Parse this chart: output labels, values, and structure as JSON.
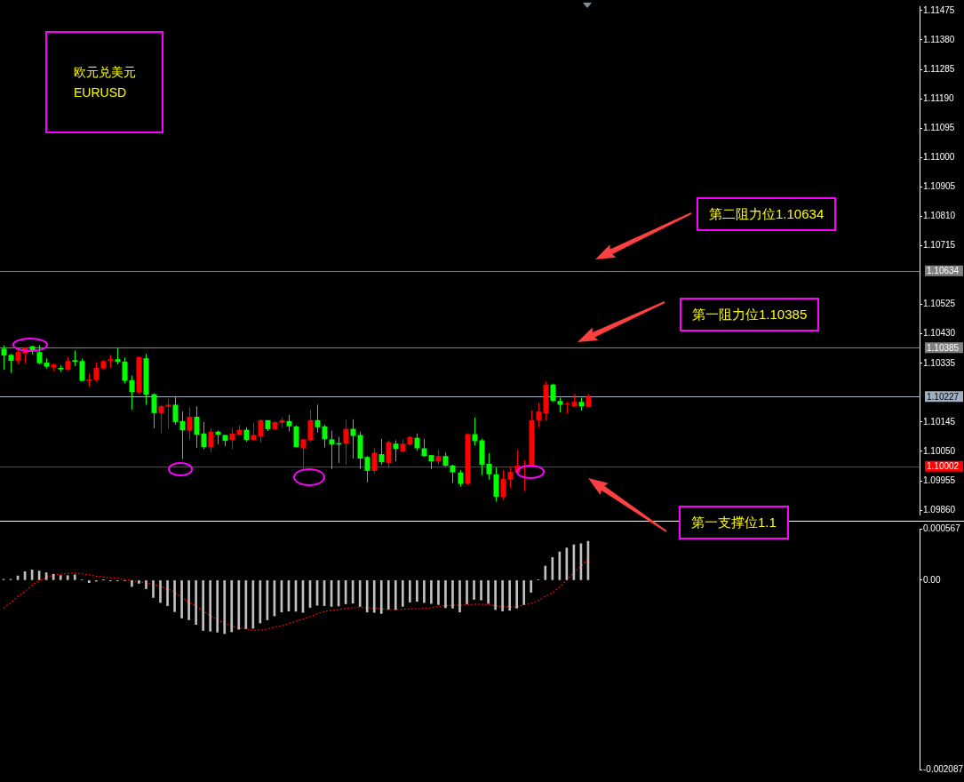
{
  "chart_data": [
    {
      "type": "candlestick",
      "title": "欧元兑美元",
      "subtitle": "EURUSD",
      "tick_labels": "y",
      "categories": [
        null,
        null,
        null,
        null,
        null,
        null,
        null,
        null,
        null,
        null,
        null,
        null,
        null,
        null,
        null,
        null,
        null,
        null,
        null,
        null,
        null,
        null,
        null,
        null,
        null,
        null,
        null,
        null,
        null,
        null,
        null,
        null,
        null,
        null,
        null,
        null,
        null,
        null,
        null,
        null,
        null,
        null,
        null,
        null,
        null,
        null,
        null,
        null,
        null,
        null,
        null,
        null,
        null,
        null,
        null,
        null,
        null,
        null,
        null,
        null,
        null,
        null,
        null,
        null,
        null,
        null,
        null,
        null,
        null,
        null,
        null,
        null,
        null,
        null,
        null,
        null,
        null,
        null,
        null,
        null,
        null,
        null,
        null,
        null,
        null,
        null,
        null,
        null,
        null,
        null,
        null,
        null,
        null,
        null,
        null,
        null,
        null,
        null,
        null,
        null,
        null,
        null,
        null,
        null,
        null,
        null,
        null,
        null,
        null,
        null,
        null,
        null,
        null,
        null,
        null,
        null,
        null,
        null,
        null,
        null,
        null,
        null,
        null,
        null,
        null,
        null,
        null,
        null,
        null
      ],
      "ylim": [
        1.09846,
        1.11489
      ],
      "yticks": [
        1.11475,
        {
          "value": 1.1138,
          "label": "1.11380"
        },
        1.11285,
        {
          "value": 1.1119,
          "label": "1.11190"
        },
        1.11095,
        {
          "value": 1.11,
          "label": "1.11000"
        },
        1.10905,
        {
          "value": 1.1081,
          "label": "1.10810"
        },
        1.10715,
        1.10525,
        {
          "value": 1.1043,
          "label": "1.10430"
        },
        1.10335,
        1.10145,
        {
          "value": 1.1005,
          "label": "1.10050"
        },
        1.09955,
        {
          "value": 1.0986,
          "label": "1.09860"
        }
      ],
      "ohlc": [
        [
          1.10382,
          1.10393,
          1.10314,
          1.1036
        ],
        [
          1.10362,
          1.10365,
          1.10304,
          1.10343
        ],
        [
          1.10342,
          1.1038,
          1.10332,
          1.10371
        ],
        [
          1.10366,
          1.10387,
          1.10335,
          1.10385
        ],
        [
          1.1039,
          1.10391,
          1.10364,
          1.10377
        ],
        [
          1.10371,
          1.10393,
          1.10332,
          1.10335
        ],
        [
          1.10337,
          1.10351,
          1.10318,
          1.10324
        ],
        [
          1.10321,
          1.10334,
          1.10309,
          1.10331
        ],
        [
          1.1032,
          1.10328,
          1.10307,
          1.10315
        ],
        [
          1.10314,
          1.10354,
          1.10312,
          1.10342
        ],
        [
          1.10345,
          1.10376,
          1.10326,
          1.1034
        ],
        [
          1.10342,
          1.1035,
          1.10278,
          1.10278
        ],
        [
          1.10278,
          1.10301,
          1.10259,
          1.10283
        ],
        [
          1.10281,
          1.10337,
          1.10274,
          1.1032
        ],
        [
          1.10318,
          1.10346,
          1.10318,
          1.10342
        ],
        [
          1.10342,
          1.10362,
          1.10321,
          1.10348
        ],
        [
          1.10348,
          1.10385,
          1.10332,
          1.1034
        ],
        [
          1.1034,
          1.10353,
          1.1027,
          1.10278
        ],
        [
          1.1028,
          1.10295,
          1.10185,
          1.10242
        ],
        [
          1.10241,
          1.10357,
          1.10236,
          1.10355
        ],
        [
          1.10351,
          1.10365,
          1.10201,
          1.10233
        ],
        [
          1.10235,
          1.10238,
          1.10125,
          1.10174
        ],
        [
          1.10174,
          1.10201,
          1.10109,
          1.10196
        ],
        [
          1.10194,
          1.10221,
          1.10123,
          1.10201
        ],
        [
          1.10201,
          1.10227,
          1.10137,
          1.10145
        ],
        [
          1.10148,
          1.10179,
          1.10025,
          1.10118
        ],
        [
          1.10117,
          1.10193,
          1.10087,
          1.10162
        ],
        [
          1.10162,
          1.10196,
          1.10061,
          1.10104
        ],
        [
          1.10108,
          1.10145,
          1.10057,
          1.10064
        ],
        [
          1.10064,
          1.10125,
          1.10047,
          1.10114
        ],
        [
          1.10114,
          1.10118,
          1.10073,
          1.10104
        ],
        [
          1.10103,
          1.10103,
          1.10067,
          1.10084
        ],
        [
          1.10087,
          1.10125,
          1.10058,
          1.10108
        ],
        [
          1.10104,
          1.10134,
          1.10101,
          1.1012
        ],
        [
          1.1012,
          1.10128,
          1.10081,
          1.10087
        ],
        [
          1.10087,
          1.10143,
          1.10084,
          1.10103
        ],
        [
          1.10098,
          1.10154,
          1.10078,
          1.10151
        ],
        [
          1.10151,
          1.10151,
          1.10116,
          1.10122
        ],
        [
          1.10122,
          1.10147,
          1.1012,
          1.10145
        ],
        [
          1.10142,
          1.1016,
          1.10126,
          1.10151
        ],
        [
          1.10148,
          1.10168,
          1.10115,
          1.10131
        ],
        [
          1.10131,
          1.10134,
          1.10064,
          1.10064
        ],
        [
          1.1006,
          1.10091,
          1.09987,
          1.10089
        ],
        [
          1.10086,
          1.10185,
          1.10081,
          1.10151
        ],
        [
          1.10151,
          1.10201,
          1.10111,
          1.10128
        ],
        [
          1.10131,
          1.10137,
          1.10063,
          1.10089
        ],
        [
          1.10089,
          1.10117,
          1.09993,
          1.10072
        ],
        [
          1.10077,
          1.10097,
          1.10013,
          1.10072
        ],
        [
          1.10075,
          1.10154,
          1.10007,
          1.10123
        ],
        [
          1.10123,
          1.10154,
          1.10027,
          1.101
        ],
        [
          1.10103,
          1.10114,
          1.09993,
          1.10027
        ],
        [
          1.10032,
          1.10035,
          1.0995,
          1.09987
        ],
        [
          1.09987,
          1.1006,
          1.09979,
          1.10046
        ],
        [
          1.10041,
          1.10091,
          1.10007,
          1.10015
        ],
        [
          1.10013,
          1.10086,
          1.09996,
          1.1008
        ],
        [
          1.10075,
          1.10086,
          1.10018,
          1.10058
        ],
        [
          1.10049,
          1.10089,
          1.10047,
          1.10075
        ],
        [
          1.10072,
          1.101,
          1.10069,
          1.10097
        ],
        [
          1.10094,
          1.10108,
          1.10052,
          1.1006
        ],
        [
          1.1006,
          1.10091,
          1.10032,
          1.10035
        ],
        [
          1.10038,
          1.10038,
          1.09993,
          1.10018
        ],
        [
          1.10018,
          1.10055,
          1.10007,
          1.10035
        ],
        [
          1.10035,
          1.10046,
          1.10001,
          1.10004
        ],
        [
          1.10004,
          1.10007,
          1.09948,
          1.09982
        ],
        [
          1.09982,
          1.0999,
          1.09936,
          1.09945
        ],
        [
          1.09945,
          1.10108,
          1.09942,
          1.10106
        ],
        [
          1.10106,
          1.10159,
          1.10069,
          1.10083
        ],
        [
          1.10086,
          1.10091,
          1.09973,
          1.10007
        ],
        [
          1.1001,
          1.10044,
          1.09959,
          1.09976
        ],
        [
          1.09976,
          1.09998,
          1.09888,
          1.09903
        ],
        [
          1.09903,
          1.0999,
          1.09894,
          1.09962
        ],
        [
          1.09959,
          1.09998,
          1.09931,
          1.09984
        ],
        [
          1.09982,
          1.10055,
          1.09976,
          1.10004
        ],
        [
          1.10001,
          1.10021,
          1.09922,
          1.10004
        ],
        [
          1.10001,
          1.10182,
          1.09998,
          1.10151
        ],
        [
          1.10151,
          1.10207,
          1.10128,
          1.10179
        ],
        [
          1.10173,
          1.10275,
          1.10151,
          1.10266
        ],
        [
          1.10266,
          1.10269,
          1.1021,
          1.10213
        ],
        [
          1.10213,
          1.10224,
          1.10176,
          1.10201
        ],
        [
          1.10201,
          1.1021,
          1.10173,
          1.10204
        ],
        [
          1.10196,
          1.10235,
          1.10193,
          1.1021
        ],
        [
          1.1021,
          1.10224,
          1.10182,
          1.10196
        ],
        [
          1.10193,
          1.10235,
          1.10193,
          1.10227
        ],
        null,
        null,
        null,
        null,
        null,
        null,
        null,
        null,
        null,
        null,
        null,
        null,
        null,
        null,
        null,
        null,
        null,
        null,
        null,
        null,
        null,
        null,
        null,
        null,
        null,
        null,
        null,
        null,
        null,
        null,
        null,
        null,
        null,
        null,
        null,
        null,
        null,
        null,
        null,
        null,
        null,
        null,
        null,
        null,
        null,
        null
      ],
      "colors": [
        "#00ff00",
        "#00ff00",
        "#ff0000",
        "#ff0000",
        "#00ff00",
        "#00ff00",
        "#00ff00",
        "#ff0000",
        "#00ff00",
        "#ff0000",
        "#00ff00",
        "#00ff00",
        "#ff0000",
        "#ff0000",
        "#ff0000",
        "#ff0000",
        "#00ff00",
        "#00ff00",
        "#00ff00",
        "#ff0000",
        "#00ff00",
        "#00ff00",
        "#ff0000",
        "#ff0000",
        "#00ff00",
        "#00ff00",
        "#ff0000",
        "#00ff00",
        "#00ff00",
        "#ff0000",
        "#00ff00",
        "#00ff00",
        "#ff0000",
        "#ff0000",
        "#00ff00",
        "#ff0000",
        "#ff0000",
        "#00ff00",
        "#ff0000",
        "#ff0000",
        "#00ff00",
        "#00ff00",
        "#ff0000",
        "#ff0000",
        "#00ff00",
        "#00ff00",
        "#00ff00",
        "#00ff00",
        "#ff0000",
        "#00ff00",
        "#00ff00",
        "#00ff00",
        "#ff0000",
        "#00ff00",
        "#ff0000",
        "#00ff00",
        "#ff0000",
        "#ff0000",
        "#00ff00",
        "#00ff00",
        "#00ff00",
        "#ff0000",
        "#00ff00",
        "#00ff00",
        "#00ff00",
        "#ff0000",
        "#00ff00",
        "#00ff00",
        "#00ff00",
        "#00ff00",
        "#ff0000",
        "#ff0000",
        "#ff0000",
        "#ff0000",
        "#ff0000",
        "#ff0000",
        "#ff0000",
        "#00ff00",
        "#00ff00",
        "#ff0000",
        "#ff0000",
        "#00ff00",
        "#ff0000",
        null,
        null,
        null,
        null,
        null,
        null,
        null,
        null,
        null,
        null,
        null,
        null,
        null,
        null,
        null,
        null,
        null,
        null,
        null,
        null,
        null,
        null,
        null,
        null,
        null,
        null,
        null,
        null,
        null,
        null,
        null,
        null,
        null,
        null,
        null,
        null,
        null,
        null,
        null,
        null,
        null,
        null,
        null,
        null,
        null,
        null
      ],
      "ref_lines": [
        {
          "axis": "y",
          "value": 1.10634,
          "label": "1.10634",
          "color": "#808080"
        },
        {
          "axis": "y",
          "value": 1.10385,
          "label": "1.10385",
          "color": "#808080"
        },
        {
          "axis": "y",
          "value": 1.10227,
          "label": "1.10227",
          "color": "#a0b0c0"
        },
        {
          "axis": "y",
          "value": 1.10002,
          "label": "1.10002",
          "color": "#ff0000"
        }
      ],
      "annotations": [
        "第二阻力位1.10634",
        "第一阻力位1.10385",
        "第一支撑位1.1"
      ]
    },
    {
      "type": "bar",
      "tick_labels": "y",
      "categories": [
        null,
        null,
        null,
        null,
        null,
        null,
        null,
        null,
        null,
        null,
        null,
        null,
        null,
        null,
        null,
        null,
        null,
        null,
        null,
        null,
        null,
        null,
        null,
        null,
        null,
        null,
        null,
        null,
        null,
        null,
        null,
        null,
        null,
        null,
        null,
        null,
        null,
        null,
        null,
        null,
        null,
        null,
        null,
        null,
        null,
        null,
        null,
        null,
        null,
        null,
        null,
        null,
        null,
        null,
        null,
        null,
        null,
        null,
        null,
        null,
        null,
        null,
        null,
        null,
        null,
        null,
        null,
        null,
        null,
        null,
        null,
        null,
        null,
        null,
        null,
        null,
        null,
        null,
        null,
        null,
        null,
        null,
        null,
        null,
        null,
        null,
        null,
        null,
        null,
        null,
        null,
        null,
        null,
        null,
        null,
        null,
        null,
        null,
        null,
        null,
        null,
        null,
        null,
        null,
        null,
        null,
        null,
        null,
        null,
        null,
        null,
        null,
        null,
        null,
        null,
        null,
        null,
        null,
        null,
        null,
        null,
        null,
        null,
        null,
        null,
        null,
        null,
        null,
        null
      ],
      "ylim": [
        -0.002087,
        0.000567
      ],
      "yticks": [
        0.000567,
        {
          "value": 0,
          "label": "0.00"
        },
        -0.002087
      ],
      "series": [
        {
          "type": "bar",
          "color": "#c0c0c0",
          "values": [
            1e-05,
            1e-05,
            4.7e-05,
            9.4e-05,
            0.000113,
            0.000101,
            8.2e-05,
            6.6e-05,
            5.1e-05,
            5.1e-05,
            5.9e-05,
            4e-06,
            -2.7e-05,
            -1.2e-05,
            2e-06,
            -8e-06,
            -8e-06,
            -4e-06,
            -7e-05,
            -3.5e-05,
            -9.4e-05,
            -0.000191,
            -0.000246,
            -0.000281,
            -0.000347,
            -0.000417,
            -0.000437,
            -0.000488,
            -0.000554,
            -0.000562,
            -0.000573,
            -0.000589,
            -0.000569,
            -0.000542,
            -0.000534,
            -0.00053,
            -0.000472,
            -0.000437,
            -0.000394,
            -0.000351,
            -0.00034,
            -0.000343,
            -0.000355,
            -0.0003,
            -0.000277,
            -0.000281,
            -0.000289,
            -0.000285,
            -0.000261,
            -0.000254,
            -0.000289,
            -0.000351,
            -0.000355,
            -0.000367,
            -0.00032,
            -0.000324,
            -0.000289,
            -0.000242,
            -0.000234,
            -0.000246,
            -0.000257,
            -0.000269,
            -0.000304,
            -0.000308,
            -0.000351,
            -0.000261,
            -0.000211,
            -0.000218,
            -0.000257,
            -0.000324,
            -0.00034,
            -0.000332,
            -0.000308,
            -0.000269,
            -0.000133,
            3e-06,
            0.000156,
            0.00025,
            0.000312,
            0.000355,
            0.00039,
            0.000402,
            0.000429,
            null,
            null,
            null,
            null,
            null,
            null,
            null,
            null,
            null,
            null,
            null,
            null,
            null,
            null,
            null,
            null,
            null,
            null,
            null,
            null,
            null,
            null,
            null,
            null,
            null,
            null,
            null,
            null,
            null,
            null,
            null,
            null,
            null,
            null,
            null,
            null,
            null,
            null,
            null,
            null,
            null,
            null,
            null,
            null,
            null,
            null
          ]
        },
        {
          "type": "line",
          "color": "#ff0000",
          "line_style": "dotted",
          "values": [
            -0.000308,
            -0.00025,
            -0.00018,
            -0.000125,
            -5.5e-05,
            -8e-06,
            3.1e-05,
            5.5e-05,
            6.6e-05,
            7.4e-05,
            7.8e-05,
            7e-05,
            5.9e-05,
            4.3e-05,
            3.5e-05,
            2.7e-05,
            2e-05,
            8e-06,
            -4e-06,
            -1.6e-05,
            -3.1e-05,
            -4.7e-05,
            -6.6e-05,
            -9.4e-05,
            -0.000133,
            -0.000191,
            -0.000242,
            -0.000289,
            -0.00034,
            -0.00039,
            -0.000437,
            -0.000476,
            -0.000507,
            -0.000527,
            -0.000538,
            -0.00055,
            -0.000554,
            -0.000538,
            -0.000515,
            -0.000503,
            -0.000476,
            -0.000452,
            -0.000429,
            -0.000402,
            -0.000371,
            -0.000343,
            -0.000335,
            -0.000324,
            -0.000312,
            -0.000304,
            -0.0003,
            -0.000304,
            -0.000308,
            -0.000316,
            -0.000324,
            -0.000324,
            -0.00032,
            -0.000316,
            -0.000316,
            -0.000312,
            -0.000304,
            -0.000289,
            -0.000281,
            -0.000277,
            -0.000277,
            -0.000273,
            -0.000265,
            -0.000265,
            -0.000269,
            -0.000281,
            -0.000289,
            -0.000293,
            -0.000296,
            -0.000273,
            -0.000257,
            -0.000226,
            -0.000176,
            -0.00014,
            -7.4e-05,
            4e-06,
            8.2e-05,
            0.000152,
            0.000234,
            null,
            null,
            null,
            null,
            null,
            null,
            null,
            null,
            null,
            null,
            null,
            null,
            null,
            null,
            null,
            null,
            null,
            null,
            null,
            null,
            null,
            null,
            null,
            null,
            null,
            null,
            null,
            null,
            null,
            null,
            null,
            null,
            null,
            null,
            null,
            null,
            null,
            null,
            null,
            null,
            null,
            null,
            null,
            null,
            null,
            null
          ]
        }
      ]
    }
  ]
}
